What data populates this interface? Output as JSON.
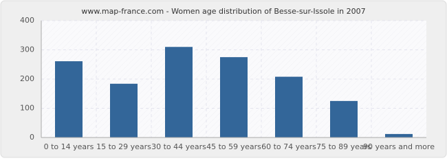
{
  "chart_data": {
    "type": "bar",
    "title": "www.map-france.com - Women age distribution of Besse-sur-Issole in 2007",
    "categories": [
      "0 to 14 years",
      "15 to 29 years",
      "30 to 44 years",
      "45 to 59 years",
      "60 to 74 years",
      "75 to 89 years",
      "90 years and more"
    ],
    "values": [
      261,
      184,
      310,
      275,
      208,
      125,
      12
    ],
    "color": "#336699",
    "ylim": [
      0,
      400
    ],
    "yticks": [
      0,
      100,
      200,
      300,
      400
    ],
    "grid": true
  }
}
